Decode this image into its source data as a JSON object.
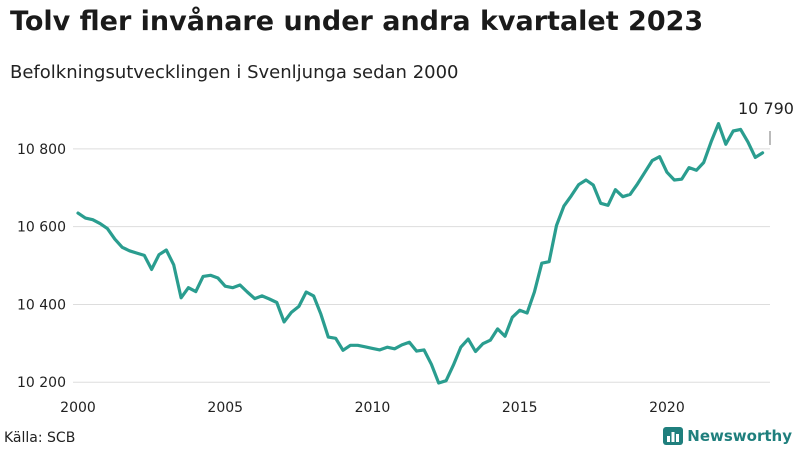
{
  "header": {
    "title": "Tolv fler invånare under andra kvartalet 2023",
    "subtitle": "Befolkningsutvecklingen i Svenljunga sedan 2000"
  },
  "footer": {
    "source": "Källa: SCB",
    "brand": "Newsworthy",
    "brand_icon": "bar-chart-logo-icon"
  },
  "colors": {
    "line": "#2a9d8f",
    "grid": "#dddddd",
    "brand": "#1f7f7d"
  },
  "chart_data": {
    "type": "line",
    "title": "Tolv fler invånare under andra kvartalet 2023",
    "subtitle": "Befolkningsutvecklingen i Svenljunga sedan 2000",
    "xlabel": "",
    "ylabel": "",
    "xlim": [
      2000,
      2023.5
    ],
    "ylim": [
      10180,
      10900
    ],
    "y_ticks": [
      10200,
      10400,
      10600,
      10800
    ],
    "y_tick_labels": [
      "10 200",
      "10 400",
      "10 600",
      "10 800"
    ],
    "x_ticks": [
      2000,
      2005,
      2010,
      2015,
      2020
    ],
    "x_tick_labels": [
      "2000",
      "2005",
      "2010",
      "2015",
      "2020"
    ],
    "grid": true,
    "annotation": {
      "text": "10 790",
      "x": 2023.5,
      "y": 10790
    },
    "series": [
      {
        "x": [
          2000.0,
          2000.25,
          2000.5,
          2000.75,
          2001.0,
          2001.25,
          2001.5,
          2001.75,
          2002.0,
          2002.25,
          2002.5,
          2002.75,
          2003.0,
          2003.25,
          2003.5,
          2003.75,
          2004.0,
          2004.25,
          2004.5,
          2004.75,
          2005.0,
          2005.25,
          2005.5,
          2005.75,
          2006.0,
          2006.25,
          2006.5,
          2006.75,
          2007.0,
          2007.25,
          2007.5,
          2007.75,
          2008.0,
          2008.25,
          2008.5,
          2008.75,
          2009.0,
          2009.25,
          2009.5,
          2009.75,
          2010.0,
          2010.25,
          2010.5,
          2010.75,
          2011.0,
          2011.25,
          2011.5,
          2011.75,
          2012.0,
          2012.25,
          2012.5,
          2012.75,
          2013.0,
          2013.25,
          2013.5,
          2013.75,
          2014.0,
          2014.25,
          2014.5,
          2014.75,
          2015.0,
          2015.25,
          2015.5,
          2015.75,
          2016.0,
          2016.25,
          2016.5,
          2016.75,
          2017.0,
          2017.25,
          2017.5,
          2017.75,
          2018.0,
          2018.25,
          2018.5,
          2018.75,
          2019.0,
          2019.25,
          2019.5,
          2019.75,
          2020.0,
          2020.25,
          2020.5,
          2020.75,
          2021.0,
          2021.25,
          2021.5,
          2021.75,
          2022.0,
          2022.25,
          2022.5,
          2022.75,
          2023.0,
          2023.25
        ],
        "values": [
          10635,
          10622,
          10618,
          10608,
          10595,
          10568,
          10547,
          10538,
          10532,
          10526,
          10490,
          10528,
          10540,
          10502,
          10417,
          10443,
          10433,
          10472,
          10475,
          10468,
          10447,
          10443,
          10450,
          10432,
          10415,
          10422,
          10414,
          10405,
          10355,
          10380,
          10395,
          10432,
          10422,
          10375,
          10316,
          10313,
          10282,
          10295,
          10295,
          10291,
          10287,
          10283,
          10290,
          10286,
          10296,
          10303,
          10280,
          10283,
          10246,
          10198,
          10204,
          10244,
          10290,
          10311,
          10279,
          10299,
          10308,
          10337,
          10318,
          10367,
          10385,
          10378,
          10432,
          10506,
          10510,
          10603,
          10653,
          10679,
          10708,
          10720,
          10707,
          10660,
          10655,
          10695,
          10677,
          10683,
          10710,
          10740,
          10770,
          10780,
          10740,
          10720,
          10722,
          10752,
          10745,
          10765,
          10818,
          10865,
          10812,
          10846,
          10850,
          10818,
          10778,
          10790
        ]
      }
    ]
  }
}
